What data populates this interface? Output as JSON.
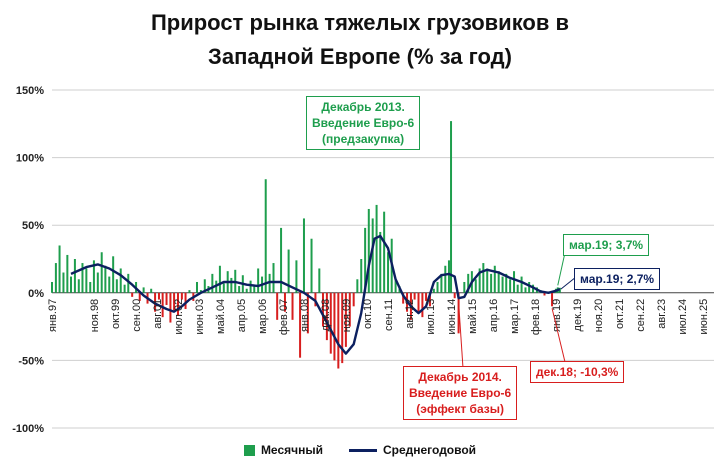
{
  "chart_data": {
    "type": "bar",
    "title_line1": "Прирост рынка тяжелых грузовиков в",
    "title_line2": "Западной Европе (% за год)",
    "ylim": [
      -100,
      150
    ],
    "yticks": [
      150,
      100,
      50,
      0,
      -50,
      -100
    ],
    "ytick_labels": [
      "150%",
      "100%",
      "50%",
      "0%",
      "-50%",
      "-100%"
    ],
    "grid": true,
    "xlim": [
      1997.0,
      2025.9
    ],
    "x_tick_positions": [
      1997.0,
      1998.83,
      1999.75,
      2000.67,
      2001.58,
      2002.5,
      2003.42,
      2004.33,
      2005.25,
      2006.17,
      2007.08,
      2008.0,
      2008.92,
      2009.83,
      2010.75,
      2011.67,
      2012.58,
      2013.5,
      2014.42,
      2015.33,
      2016.25,
      2017.17,
      2018.08,
      2019.0,
      2019.92,
      2020.83,
      2021.75,
      2022.67,
      2023.58,
      2024.5,
      2025.42
    ],
    "x_tick_labels": [
      "янв.97",
      "ноя.98",
      "окт.99",
      "сен.00",
      "авг.01",
      "июл.02",
      "июн.03",
      "май.04",
      "апр.05",
      "мар.06",
      "фев.07",
      "янв.08",
      "дек.08",
      "ноя.09",
      "окт.10",
      "сен.11",
      "авг.12",
      "июл.13",
      "июн.14",
      "май.15",
      "апр.16",
      "мар.17",
      "фев.18",
      "янв.19",
      "дек.19",
      "ноя.20",
      "окт.21",
      "сен.22",
      "авг.23",
      "июл.24",
      "июн.25"
    ],
    "series": [
      {
        "name": "Месячный",
        "type": "bar",
        "color": "#1e9e4d",
        "negative_color": "#d81e1e",
        "points": [
          [
            1997.0,
            8
          ],
          [
            1997.17,
            22
          ],
          [
            1997.33,
            35
          ],
          [
            1997.5,
            15
          ],
          [
            1997.67,
            28
          ],
          [
            1997.83,
            12
          ],
          [
            1998.0,
            25
          ],
          [
            1998.17,
            10
          ],
          [
            1998.33,
            22
          ],
          [
            1998.5,
            18
          ],
          [
            1998.67,
            8
          ],
          [
            1998.83,
            24
          ],
          [
            1999.0,
            15
          ],
          [
            1999.17,
            30
          ],
          [
            1999.33,
            20
          ],
          [
            1999.5,
            12
          ],
          [
            1999.67,
            27
          ],
          [
            1999.83,
            10
          ],
          [
            2000.0,
            18
          ],
          [
            2000.17,
            6
          ],
          [
            2000.33,
            14
          ],
          [
            2000.5,
            -3
          ],
          [
            2000.67,
            8
          ],
          [
            2000.83,
            -6
          ],
          [
            2001.0,
            4
          ],
          [
            2001.17,
            -8
          ],
          [
            2001.33,
            3
          ],
          [
            2001.5,
            -14
          ],
          [
            2001.67,
            -5
          ],
          [
            2001.83,
            -18
          ],
          [
            2002.0,
            -9
          ],
          [
            2002.17,
            -22
          ],
          [
            2002.33,
            -13
          ],
          [
            2002.5,
            -17
          ],
          [
            2002.67,
            -5
          ],
          [
            2002.83,
            -12
          ],
          [
            2003.0,
            2
          ],
          [
            2003.17,
            -6
          ],
          [
            2003.33,
            8
          ],
          [
            2003.5,
            2
          ],
          [
            2003.67,
            10
          ],
          [
            2003.83,
            5
          ],
          [
            2004.0,
            14
          ],
          [
            2004.17,
            9
          ],
          [
            2004.33,
            20
          ],
          [
            2004.5,
            7
          ],
          [
            2004.67,
            16
          ],
          [
            2004.83,
            11
          ],
          [
            2005.0,
            17
          ],
          [
            2005.17,
            5
          ],
          [
            2005.33,
            13
          ],
          [
            2005.5,
            3
          ],
          [
            2005.67,
            9
          ],
          [
            2005.83,
            6
          ],
          [
            2006.0,
            18
          ],
          [
            2006.17,
            12
          ],
          [
            2006.33,
            84
          ],
          [
            2006.5,
            14
          ],
          [
            2006.67,
            22
          ],
          [
            2006.83,
            -20
          ],
          [
            2007.0,
            48
          ],
          [
            2007.17,
            -14
          ],
          [
            2007.33,
            32
          ],
          [
            2007.5,
            -20
          ],
          [
            2007.67,
            24
          ],
          [
            2007.83,
            -48
          ],
          [
            2008.0,
            55
          ],
          [
            2008.17,
            -30
          ],
          [
            2008.33,
            40
          ],
          [
            2008.5,
            -10
          ],
          [
            2008.67,
            18
          ],
          [
            2008.83,
            -25
          ],
          [
            2009.0,
            -35
          ],
          [
            2009.17,
            -45
          ],
          [
            2009.33,
            -50
          ],
          [
            2009.5,
            -56
          ],
          [
            2009.67,
            -52
          ],
          [
            2009.83,
            -40
          ],
          [
            2010.0,
            -25
          ],
          [
            2010.17,
            -10
          ],
          [
            2010.33,
            10
          ],
          [
            2010.5,
            25
          ],
          [
            2010.67,
            48
          ],
          [
            2010.83,
            62
          ],
          [
            2011.0,
            55
          ],
          [
            2011.17,
            65
          ],
          [
            2011.33,
            45
          ],
          [
            2011.5,
            60
          ],
          [
            2011.67,
            30
          ],
          [
            2011.83,
            40
          ],
          [
            2012.0,
            10
          ],
          [
            2012.17,
            5
          ],
          [
            2012.33,
            -8
          ],
          [
            2012.5,
            -14
          ],
          [
            2012.67,
            -20
          ],
          [
            2012.83,
            -5
          ],
          [
            2013.0,
            -15
          ],
          [
            2013.17,
            -18
          ],
          [
            2013.33,
            -6
          ],
          [
            2013.5,
            -10
          ],
          [
            2013.67,
            3
          ],
          [
            2013.83,
            8
          ],
          [
            2014.0,
            14
          ],
          [
            2014.17,
            20
          ],
          [
            2014.33,
            24
          ],
          [
            2014.42,
            127
          ],
          [
            2014.58,
            -4
          ],
          [
            2014.75,
            -30
          ],
          [
            2015.0,
            8
          ],
          [
            2015.17,
            14
          ],
          [
            2015.33,
            16
          ],
          [
            2015.5,
            10
          ],
          [
            2015.67,
            18
          ],
          [
            2015.83,
            22
          ],
          [
            2016.0,
            18
          ],
          [
            2016.17,
            14
          ],
          [
            2016.33,
            20
          ],
          [
            2016.5,
            16
          ],
          [
            2016.67,
            12
          ],
          [
            2016.83,
            14
          ],
          [
            2017.0,
            10
          ],
          [
            2017.17,
            16
          ],
          [
            2017.33,
            6
          ],
          [
            2017.5,
            12
          ],
          [
            2017.67,
            4
          ],
          [
            2017.83,
            8
          ],
          [
            2018.0,
            6
          ],
          [
            2018.17,
            4
          ],
          [
            2018.33,
            2
          ],
          [
            2018.5,
            -2
          ],
          [
            2018.67,
            1
          ],
          [
            2018.83,
            -10
          ],
          [
            2019.0,
            3
          ],
          [
            2019.08,
            4
          ],
          [
            2019.17,
            3.7
          ]
        ]
      },
      {
        "name": "Среднегодовой",
        "type": "line",
        "color": "#0c2060",
        "points": [
          [
            1997.83,
            14
          ],
          [
            1998.5,
            19
          ],
          [
            1999.0,
            21
          ],
          [
            1999.5,
            18
          ],
          [
            2000.0,
            13
          ],
          [
            2000.5,
            6
          ],
          [
            2001.0,
            -2
          ],
          [
            2001.5,
            -8
          ],
          [
            2002.0,
            -12
          ],
          [
            2002.33,
            -14
          ],
          [
            2002.67,
            -10
          ],
          [
            2003.0,
            -5
          ],
          [
            2003.5,
            0
          ],
          [
            2004.0,
            4
          ],
          [
            2004.5,
            8
          ],
          [
            2005.0,
            8
          ],
          [
            2005.5,
            6
          ],
          [
            2006.0,
            5
          ],
          [
            2006.5,
            8
          ],
          [
            2007.0,
            8
          ],
          [
            2007.5,
            4
          ],
          [
            2008.0,
            0
          ],
          [
            2008.5,
            -6
          ],
          [
            2009.0,
            -22
          ],
          [
            2009.5,
            -38
          ],
          [
            2009.83,
            -45
          ],
          [
            2010.17,
            -38
          ],
          [
            2010.5,
            -15
          ],
          [
            2010.83,
            20
          ],
          [
            2011.08,
            40
          ],
          [
            2011.33,
            42
          ],
          [
            2011.67,
            33
          ],
          [
            2012.0,
            10
          ],
          [
            2012.33,
            -2
          ],
          [
            2012.67,
            -10
          ],
          [
            2013.0,
            -15
          ],
          [
            2013.33,
            -10
          ],
          [
            2013.67,
            8
          ],
          [
            2014.0,
            13
          ],
          [
            2014.33,
            14
          ],
          [
            2014.58,
            12
          ],
          [
            2014.75,
            -4
          ],
          [
            2015.0,
            -3
          ],
          [
            2015.33,
            8
          ],
          [
            2015.67,
            15
          ],
          [
            2016.0,
            17
          ],
          [
            2016.5,
            15
          ],
          [
            2017.0,
            11
          ],
          [
            2017.5,
            8
          ],
          [
            2018.0,
            4
          ],
          [
            2018.33,
            1
          ],
          [
            2018.67,
            0
          ],
          [
            2019.0,
            1.5
          ],
          [
            2019.17,
            2.7
          ]
        ]
      }
    ],
    "annotations": [
      {
        "id": "dec2013",
        "color": "green",
        "lines": [
          "Декабрь 2013.",
          "Введение Евро-6",
          "(предзакупка)"
        ]
      },
      {
        "id": "dec2014",
        "color": "red",
        "lines": [
          "Декабрь 2014.",
          "Введение Евро-6",
          "(эффект базы)"
        ]
      },
      {
        "id": "mar19-monthly",
        "color": "green",
        "lines": [
          "мар.19; 3,7%"
        ]
      },
      {
        "id": "mar19-avg",
        "color": "navy",
        "lines": [
          "мар.19; 2,7%"
        ]
      },
      {
        "id": "dec18",
        "color": "red",
        "lines": [
          "дек.18; -10,3%"
        ]
      }
    ],
    "legend": {
      "placement": "bottom",
      "items": [
        {
          "label": "Месячный",
          "kind": "bar"
        },
        {
          "label": "Среднегодовой",
          "kind": "line"
        }
      ]
    }
  }
}
